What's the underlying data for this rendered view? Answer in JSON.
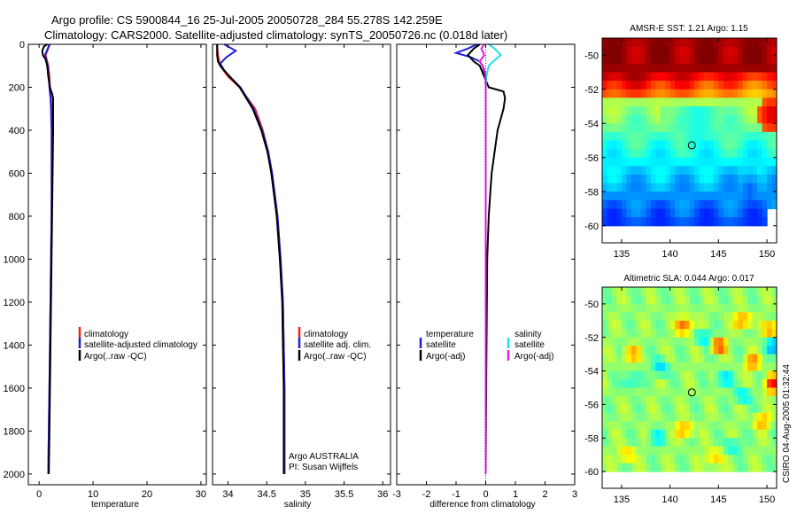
{
  "header": {
    "line1": "Argo profile: CS 5900844_16 25-Jul-2005 20050728_284 55.278S 142.259E",
    "line2": "Climatology: CARS2000. Satellite-adjusted climatology: synTS_20050726.nc (0.018d later)"
  },
  "side_note": "CSIRO 04-Aug-2005 01:32:44",
  "colors": {
    "climatology": "#e8231f",
    "satellite": "#1f1fd8",
    "argo": "#000000",
    "sal_satellite": "#20e0e8",
    "sal_argo": "#e020e0",
    "sst_zero": "#b8b8b8"
  },
  "chart_data": [
    {
      "type": "line",
      "name": "temperature-panel",
      "xlabel": "temperature",
      "ylabel": "",
      "xlim": [
        -2,
        31
      ],
      "ylim": [
        2050,
        0
      ],
      "y_reversed": true,
      "xticks": [
        0,
        10,
        20,
        30
      ],
      "yticks": [
        0,
        200,
        400,
        600,
        800,
        1000,
        1200,
        1400,
        1600,
        1800,
        2000
      ],
      "legend": {
        "placement": "right-middle",
        "entries": [
          "climatology",
          "satellite-adjusted climatology",
          "Argo(..raw -QC)"
        ]
      },
      "series": [
        {
          "name": "climatology",
          "color": "#e8231f",
          "depth": [
            0,
            20,
            50,
            80,
            100,
            150,
            200,
            250,
            300,
            400,
            600,
            800,
            1000,
            1200,
            1400,
            1600,
            1800,
            2000
          ],
          "values": [
            2.0,
            1.7,
            1.2,
            1.5,
            1.7,
            1.9,
            2.0,
            2.2,
            2.3,
            2.4,
            2.4,
            2.3,
            2.2,
            2.1,
            2.0,
            1.9,
            1.8,
            1.7
          ]
        },
        {
          "name": "satellite-adjusted climatology",
          "color": "#1f1fd8",
          "depth": [
            0,
            20,
            50,
            80,
            100,
            150,
            200,
            250,
            300,
            400,
            600,
            800,
            1000,
            1200,
            1400,
            1600,
            1800,
            2000
          ],
          "values": [
            1.9,
            1.6,
            1.1,
            1.4,
            1.6,
            1.8,
            1.9,
            2.1,
            2.2,
            2.3,
            2.3,
            2.3,
            2.2,
            2.1,
            2.0,
            1.9,
            1.8,
            1.7
          ]
        },
        {
          "name": "Argo(..raw -QC)",
          "color": "#000000",
          "depth": [
            0,
            10,
            30,
            50,
            70,
            100,
            150,
            200,
            230,
            250,
            300,
            400,
            600,
            800,
            1000,
            1200,
            1400,
            1600,
            1800,
            2000
          ],
          "values": [
            1.5,
            0.9,
            0.6,
            0.7,
            1.2,
            1.5,
            1.7,
            2.0,
            2.4,
            2.6,
            2.6,
            2.6,
            2.5,
            2.4,
            2.3,
            2.2,
            2.1,
            2.0,
            1.9,
            1.8
          ]
        }
      ]
    },
    {
      "type": "line",
      "name": "salinity-panel",
      "xlabel": "salinity",
      "ylabel": "",
      "xlim": [
        33.8,
        36.1
      ],
      "ylim": [
        2050,
        0
      ],
      "y_reversed": true,
      "xticks": [
        34,
        34.5,
        35,
        35.5,
        36
      ],
      "legend": {
        "placement": "right-middle",
        "entries": [
          "climatology",
          "satellite adj. clim.",
          "Argo(..raw -QC)"
        ]
      },
      "annotation": {
        "line1": "Argo AUSTRALIA",
        "line2": "PI: Susan Wijffels"
      },
      "series": [
        {
          "name": "climatology",
          "color": "#e8231f",
          "depth": [
            0,
            50,
            100,
            150,
            200,
            300,
            400,
            500,
            600,
            800,
            1000,
            1200,
            1400,
            1600,
            1800,
            2000
          ],
          "values": [
            33.86,
            33.87,
            33.9,
            34.0,
            34.15,
            34.35,
            34.45,
            34.52,
            34.57,
            34.64,
            34.68,
            34.71,
            34.72,
            34.73,
            34.73,
            34.73
          ]
        },
        {
          "name": "satellite adj. clim.",
          "color": "#1f1fd8",
          "depth": [
            0,
            30,
            60,
            90,
            120,
            150,
            200,
            300,
            400,
            500,
            600,
            800,
            1000,
            1200,
            1400,
            1600,
            1800,
            2000
          ],
          "values": [
            33.95,
            34.1,
            33.98,
            33.9,
            33.95,
            34.02,
            34.16,
            34.33,
            34.44,
            34.52,
            34.57,
            34.64,
            34.68,
            34.71,
            34.72,
            34.73,
            34.73,
            34.73
          ]
        },
        {
          "name": "Argo(..raw -QC)",
          "color": "#000000",
          "depth": [
            0,
            20,
            50,
            80,
            100,
            130,
            160,
            200,
            300,
            400,
            500,
            600,
            800,
            1000,
            1200,
            1400,
            1600,
            1800,
            2000
          ],
          "values": [
            33.86,
            33.86,
            33.86,
            33.87,
            33.9,
            33.97,
            34.05,
            34.15,
            34.32,
            34.43,
            34.51,
            34.56,
            34.63,
            34.67,
            34.7,
            34.71,
            34.72,
            34.72,
            34.72
          ]
        }
      ]
    },
    {
      "type": "line",
      "name": "difference-panel",
      "xlabel": "difference from climatology",
      "ylabel": "",
      "xlim": [
        -3,
        3
      ],
      "ylim": [
        2050,
        0
      ],
      "y_reversed": true,
      "xticks": [
        -3,
        -2,
        -1,
        0,
        1,
        2,
        3
      ],
      "legend": {
        "placement": "right-middle",
        "temperature_entries": [
          "temperature",
          "satellite",
          "Argo(-adj)"
        ],
        "salinity_entries": [
          "salinity",
          "satellite",
          "Argo(-adj)"
        ]
      },
      "series": [
        {
          "name": "temperature satellite",
          "color": "#1f1fd8",
          "depth": [
            0,
            20,
            40,
            60,
            80,
            100,
            130,
            160,
            200,
            300,
            600,
            1000,
            1500,
            2000
          ],
          "values": [
            -0.3,
            -0.6,
            -1.0,
            -0.5,
            -0.2,
            -0.1,
            -0.05,
            0,
            0,
            0,
            0,
            0,
            0,
            0
          ]
        },
        {
          "name": "temperature Argo(-adj)",
          "color": "#000000",
          "depth": [
            0,
            20,
            50,
            80,
            100,
            150,
            200,
            220,
            250,
            300,
            400,
            600,
            700,
            800,
            1000,
            1500,
            2000
          ],
          "values": [
            -0.2,
            -0.4,
            -0.6,
            -0.4,
            -0.2,
            -0.05,
            0.1,
            0.6,
            0.65,
            0.6,
            0.4,
            0.2,
            0.15,
            0.1,
            0.05,
            0.02,
            0.0
          ]
        },
        {
          "name": "salinity satellite",
          "color": "#20e0e8",
          "depth": [
            0,
            20,
            50,
            80,
            100,
            150,
            200,
            300,
            600,
            1000,
            1500,
            2000
          ],
          "values": [
            0.1,
            0.3,
            0.5,
            0.25,
            0.1,
            0.02,
            0,
            0,
            0,
            0,
            0,
            0
          ]
        },
        {
          "name": "salinity Argo(-adj)",
          "color": "#e020e0",
          "depth": [
            0,
            20,
            50,
            80,
            100,
            130,
            200,
            300,
            600,
            1000,
            1500,
            2000
          ],
          "values": [
            -0.05,
            -0.15,
            -0.05,
            -0.2,
            -0.1,
            -0.02,
            0,
            0,
            0,
            0,
            0,
            0
          ]
        }
      ]
    },
    {
      "type": "heatmap",
      "name": "sst-map",
      "title": "AMSR-E SST: 1.21 Argo: 1.15",
      "xlim": [
        133,
        151
      ],
      "ylim": [
        -61,
        -49
      ],
      "xticks": [
        135,
        140,
        145,
        150
      ],
      "yticks": [
        -50,
        -52,
        -54,
        -56,
        -58,
        -60
      ],
      "marker": {
        "lon": 142.259,
        "lat": -55.278
      },
      "colormap": "jet",
      "value_range": [
        -0.5,
        8
      ],
      "coverage": {
        "lon": [
          133,
          151
        ],
        "lat": [
          -60,
          -49
        ]
      }
    },
    {
      "type": "heatmap",
      "name": "sla-map",
      "title": "Altimetric SLA: 0.044 Argo: 0.017",
      "xlim": [
        133,
        151
      ],
      "ylim": [
        -61,
        -49
      ],
      "xticks": [
        135,
        140,
        145,
        150
      ],
      "yticks": [
        -50,
        -52,
        -54,
        -56,
        -58,
        -60
      ],
      "marker": {
        "lon": 142.259,
        "lat": -55.278
      },
      "colormap": "jet",
      "coverage": {
        "lon": [
          133,
          151
        ],
        "lat": [
          -60,
          -49
        ]
      }
    }
  ]
}
